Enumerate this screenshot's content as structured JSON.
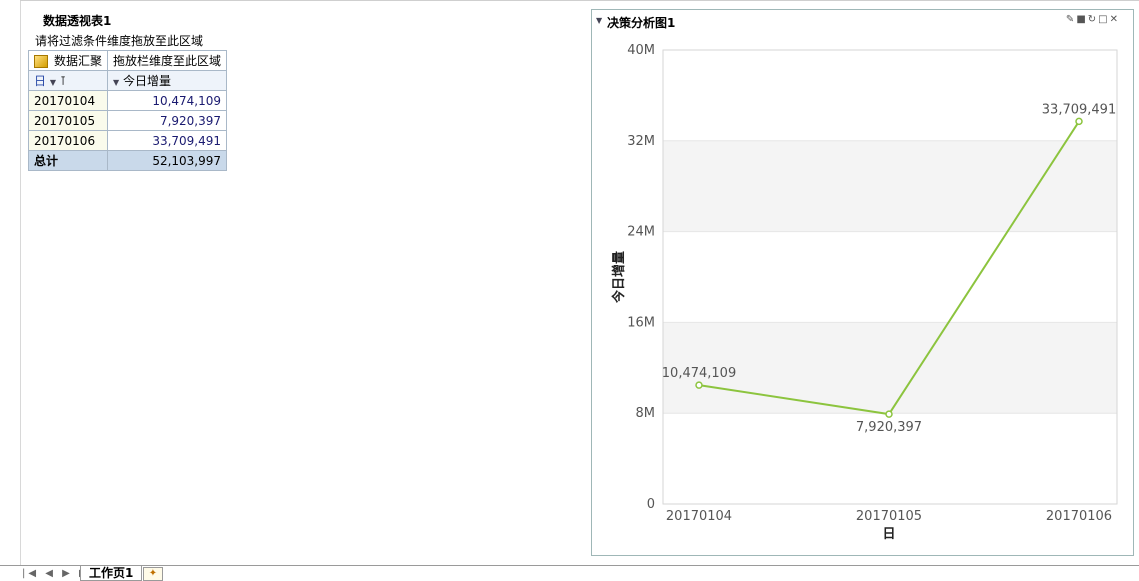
{
  "pivot": {
    "title": "数据透视表1",
    "filter_hint": "请将过滤条件维度拖放至此区域",
    "header": {
      "summary": "数据汇聚",
      "column_drop_hint": "拖放栏维度至此区域"
    },
    "row_field": "日",
    "measure": "今日增量",
    "rows": [
      {
        "label": "20170104",
        "value": "10,474,109"
      },
      {
        "label": "20170105",
        "value": "7,920,397"
      },
      {
        "label": "20170106",
        "value": "33,709,491"
      }
    ],
    "total": {
      "label": "总计",
      "value": "52,103,997"
    }
  },
  "chart_panel": {
    "title": "决策分析图1",
    "icons": [
      "pencil-icon",
      "lock-icon",
      "refresh-icon",
      "maximize-icon",
      "close-icon"
    ]
  },
  "chart_data": {
    "type": "line",
    "categories": [
      "20170104",
      "20170105",
      "20170106"
    ],
    "series": [
      {
        "values": [
          10474109,
          7920397,
          33709491
        ],
        "color": "#8cc43e"
      }
    ],
    "data_labels": [
      "10,474,109",
      "7,920,397",
      "33,709,491"
    ],
    "xlabel": "日",
    "ylabel": "今日增量",
    "ylim": [
      0,
      40000000
    ],
    "yticks": [
      0,
      8000000,
      16000000,
      24000000,
      32000000,
      40000000
    ],
    "ytick_labels": [
      "0",
      "8M",
      "16M",
      "24M",
      "32M",
      "40M"
    ],
    "band_colors": [
      "#ffffff",
      "#f4f4f4"
    ],
    "grid": true
  },
  "tabs": {
    "nav": "|◀ ◀ ▶ ▶|",
    "sheet": "工作页1",
    "new_tab_icon": "new-sheet-icon"
  }
}
